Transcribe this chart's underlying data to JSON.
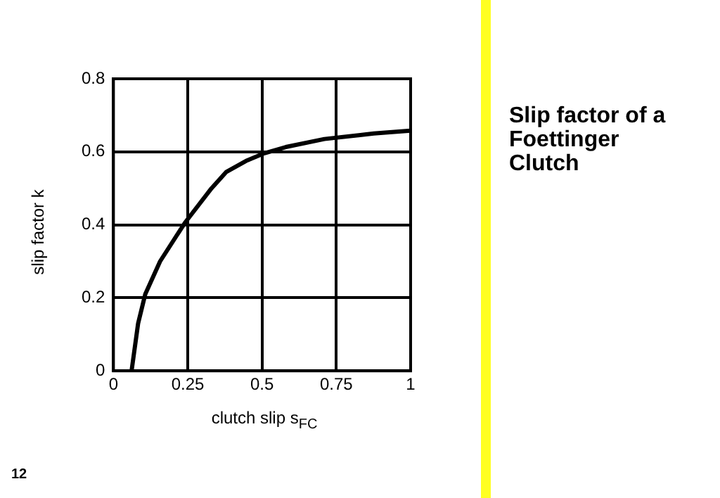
{
  "chart_data": {
    "type": "line",
    "title": "Slip factor of a Foettinger Clutch",
    "xlabel": "clutch slip s$_{FC}$",
    "ylabel": "slip factor k",
    "x": [
      0.061,
      0.083,
      0.107,
      0.157,
      0.24,
      0.33,
      0.38,
      0.446,
      0.504,
      0.58,
      0.71,
      0.876,
      1
    ],
    "series": [
      {
        "color": "#000000",
        "values": [
          0,
          0.13,
          0.21,
          0.3,
          0.405,
          0.5,
          0.545,
          0.575,
          0.595,
          0.613,
          0.635,
          0.65,
          0.658
        ]
      }
    ],
    "xlim": [
      0,
      1
    ],
    "xticks": [
      0,
      0.25,
      0.5,
      0.75,
      1
    ],
    "ylim": [
      0,
      0.8
    ],
    "yticks": [
      0,
      0.2,
      0.4,
      0.6,
      0.8
    ],
    "grid": true,
    "legend": false,
    "marker": "none",
    "line_style": "solid",
    "annotations": [
      "12"
    ]
  }
}
